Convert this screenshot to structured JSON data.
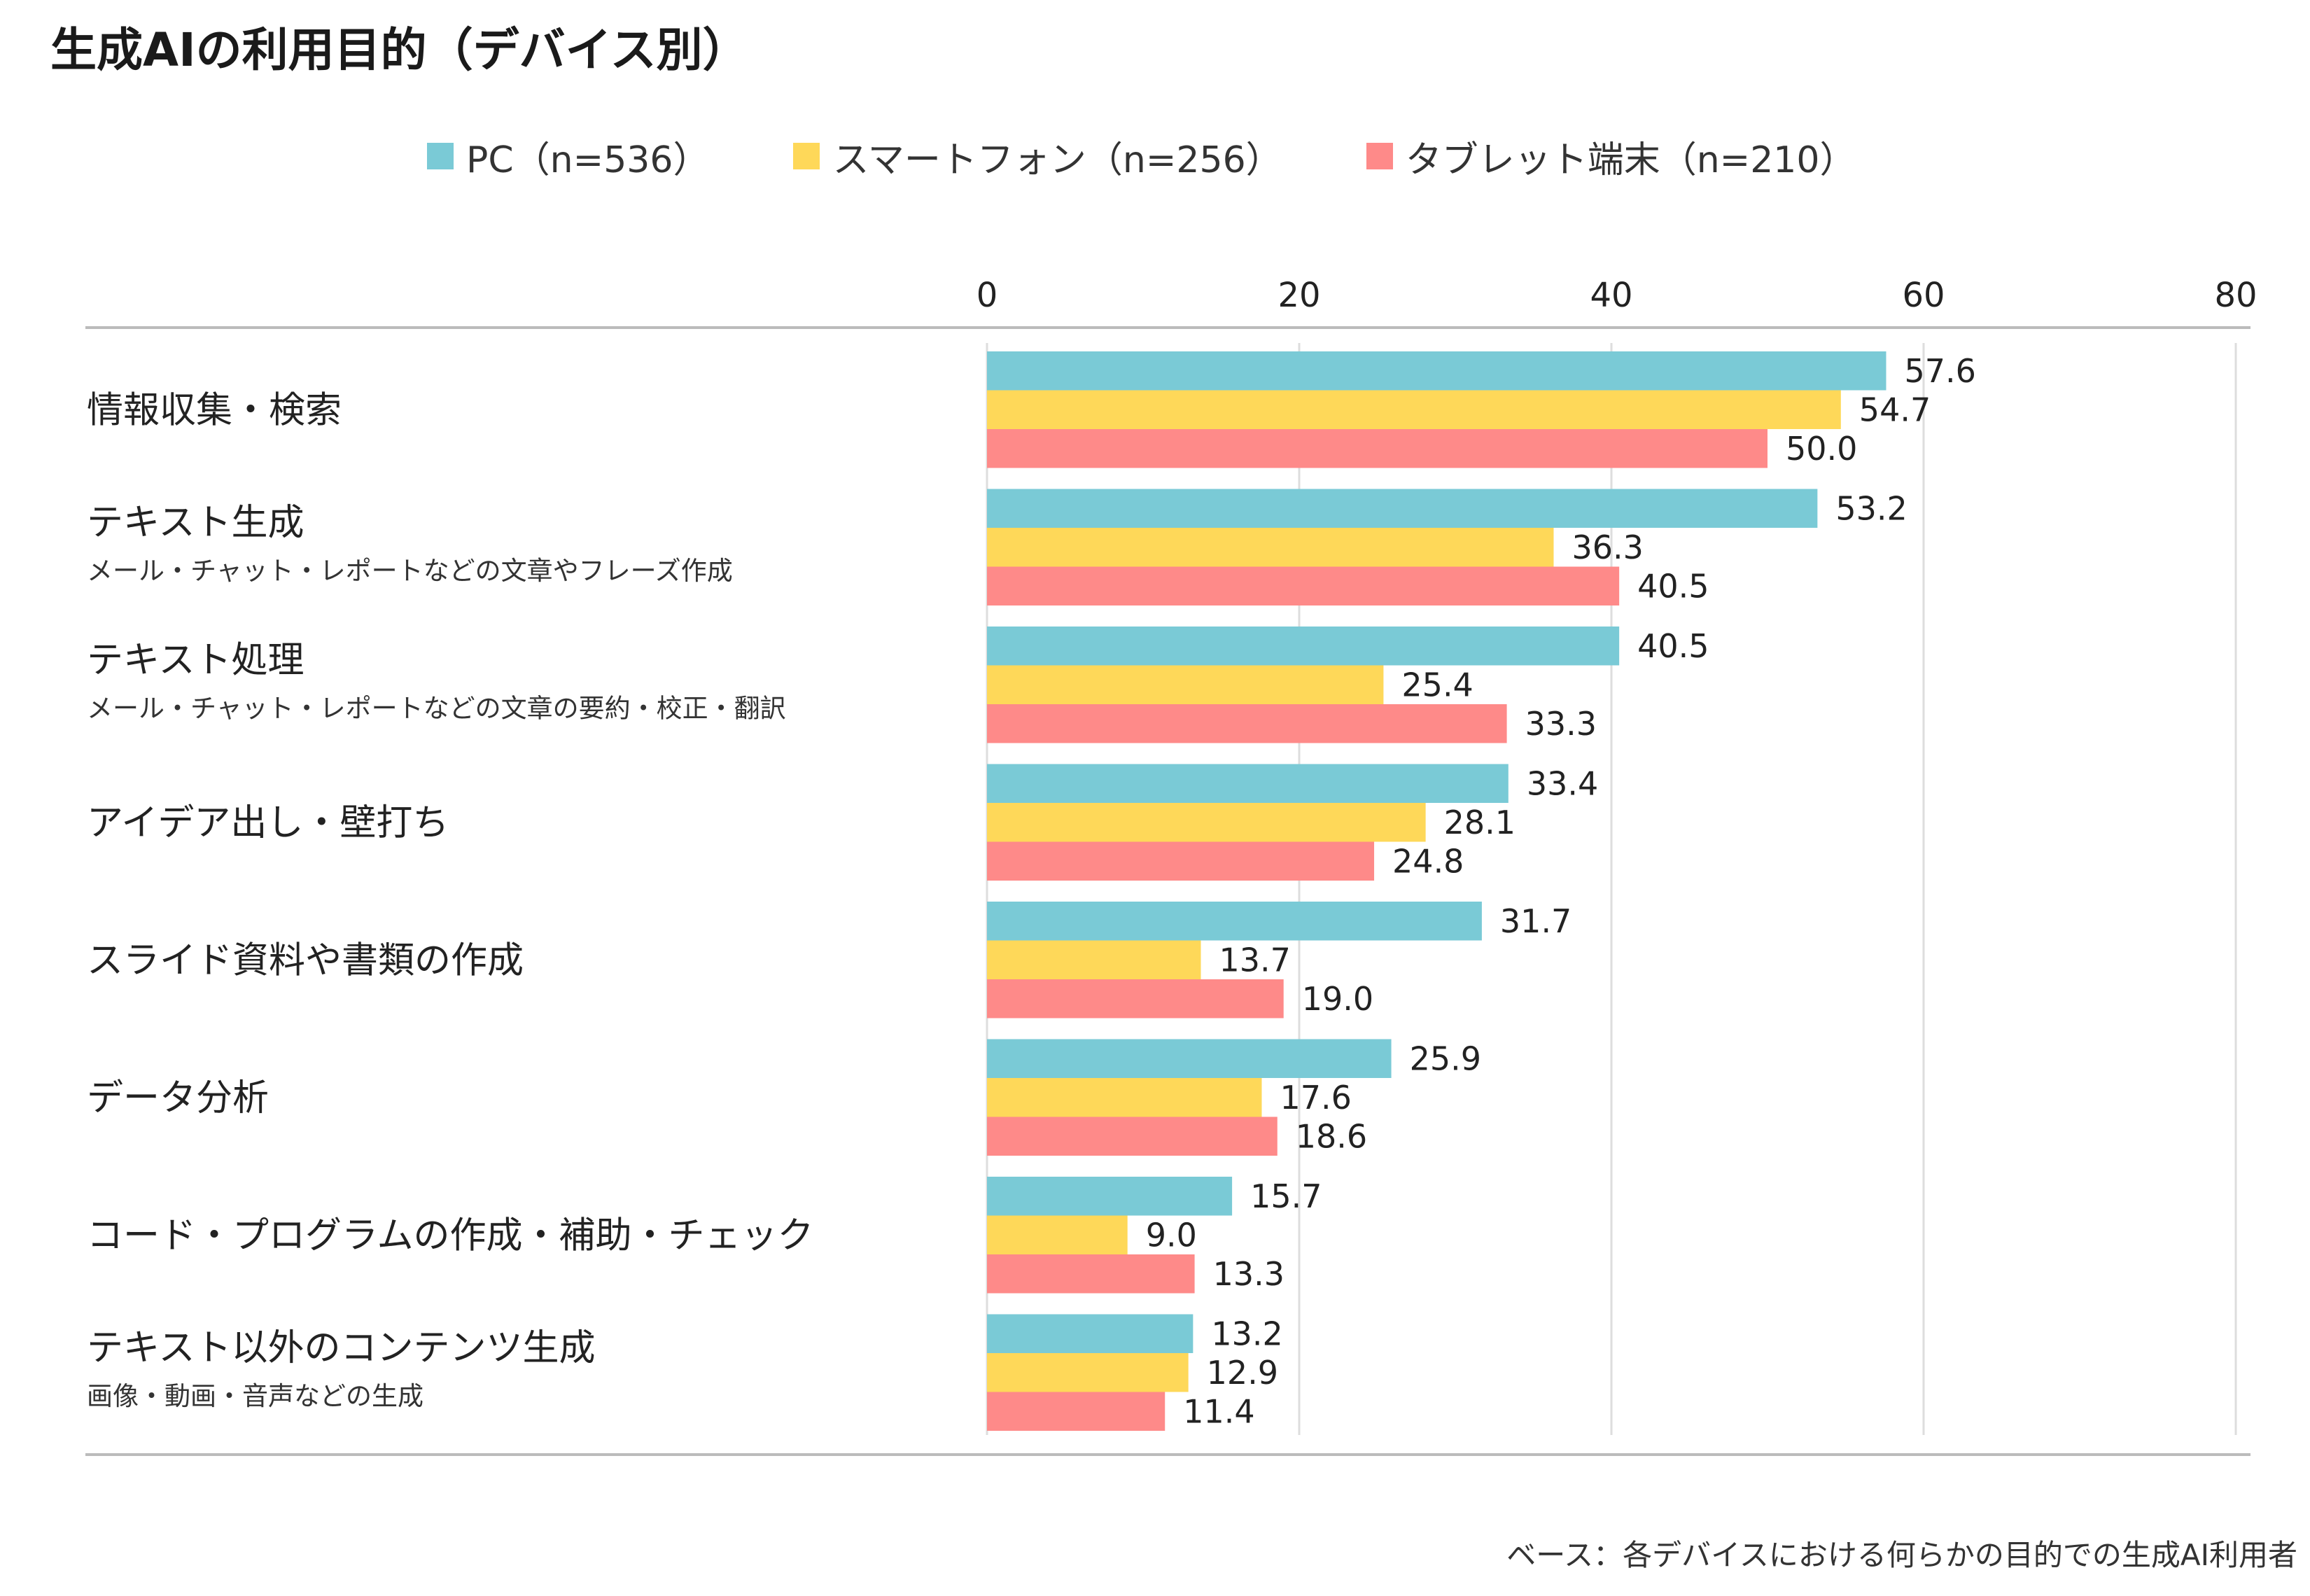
{
  "title": "生成AIの利用目的（デバイス別）",
  "footnote": "ベース：各デバイスにおける何らかの目的での生成AI利用者",
  "chart_data": {
    "type": "bar",
    "orientation": "horizontal",
    "title": "生成AIの利用目的（デバイス別）",
    "xlim": [
      0,
      80
    ],
    "xticks": [
      "0",
      "20",
      "40",
      "60",
      "80"
    ],
    "grid": true,
    "legend_position": "top",
    "categories": [
      {
        "label": "情報収集・検索",
        "sublabel": ""
      },
      {
        "label": "テキスト生成",
        "sublabel": "メール・チャット・レポートなどの文章やフレーズ作成"
      },
      {
        "label": "テキスト処理",
        "sublabel": "メール・チャット・レポートなどの文章の要約・校正・翻訳"
      },
      {
        "label": "アイデア出し・壁打ち",
        "sublabel": ""
      },
      {
        "label": "スライド資料や書類の作成",
        "sublabel": ""
      },
      {
        "label": "データ分析",
        "sublabel": ""
      },
      {
        "label": "コード・プログラムの作成・補助・チェック",
        "sublabel": ""
      },
      {
        "label": "テキスト以外のコンテンツ生成",
        "sublabel": "画像・動画・音声などの生成"
      }
    ],
    "series": [
      {
        "name": "PC（n=536）",
        "color": "#7ACAD6",
        "values": [
          57.6,
          53.2,
          40.5,
          33.4,
          31.7,
          25.9,
          15.7,
          13.2
        ]
      },
      {
        "name": "スマートフォン（n=256）",
        "color": "#FED859",
        "values": [
          54.7,
          36.3,
          25.4,
          28.1,
          13.7,
          17.6,
          9.0,
          12.9
        ]
      },
      {
        "name": "タブレット端末（n=210）",
        "color": "#FE8A89",
        "values": [
          50.0,
          40.5,
          33.3,
          24.8,
          19.0,
          18.6,
          13.3,
          11.4
        ]
      }
    ]
  }
}
